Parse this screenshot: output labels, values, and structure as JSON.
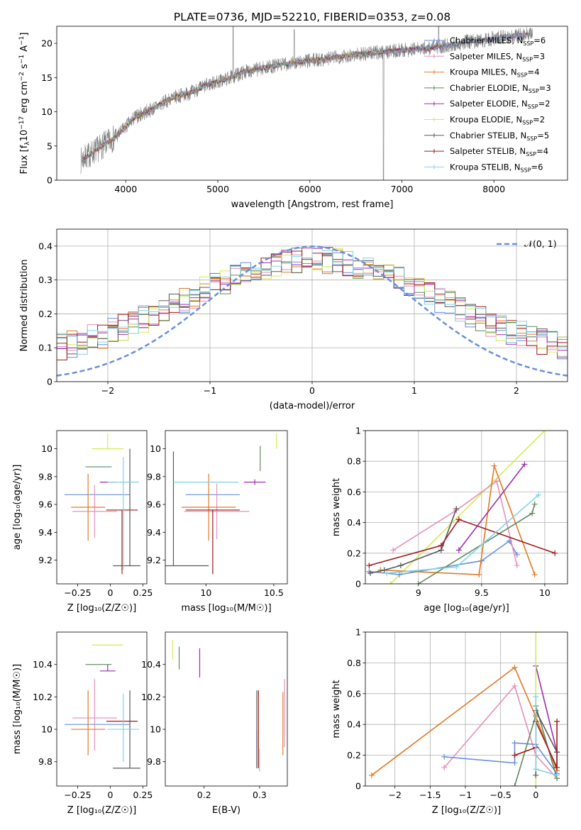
{
  "chart_data": [
    {
      "type": "line",
      "title": "PLATE=0736, MJD=52210, FIBERID=0353, z=0.08",
      "xlabel": "wavelength [Angstrom, rest frame]",
      "ylabel": "Flux [f_λ 10^-17 erg cm^-2 s^-1 A^-1]",
      "xlim": [
        3250,
        8800
      ],
      "ylim": [
        0,
        22.5
      ],
      "xticks": [
        4000,
        5000,
        6000,
        7000,
        8000
      ],
      "yticks": [
        0,
        5,
        10,
        15,
        20
      ],
      "grid": false,
      "legend_position": "top-right",
      "legend": [
        {
          "name": "Chabrier MILES",
          "nssp": "6",
          "color": "#6a8fdc"
        },
        {
          "name": "Salpeter MILES",
          "nssp": "3",
          "color": "#e58fba"
        },
        {
          "name": "Kroupa MILES",
          "nssp": "4",
          "color": "#e07b24"
        },
        {
          "name": "Chabrier ELODIE",
          "nssp": "3",
          "color": "#5f8a5c"
        },
        {
          "name": "Salpeter ELODIE",
          "nssp": "2",
          "color": "#9b2fad"
        },
        {
          "name": "Kroupa ELODIE",
          "nssp": "2",
          "color": "#d4ea53"
        },
        {
          "name": "Chabrier STELIB",
          "nssp": "5",
          "color": "#5a5a5a"
        },
        {
          "name": "Salpeter STELIB",
          "nssp": "4",
          "color": "#a01a1a"
        },
        {
          "name": "Kroupa STELIB",
          "nssp": "6",
          "color": "#7fd3e6"
        }
      ],
      "data_color": "#808080",
      "continuum": {
        "x": [
          3500,
          3700,
          3900,
          4100,
          4300,
          4500,
          4700,
          4900,
          5100,
          5300,
          5500,
          5700,
          5900,
          6100,
          6300,
          6500,
          6700,
          6900,
          7100,
          7300,
          7500,
          7700,
          7900,
          8100,
          8300,
          8400
        ],
        "y": [
          2.8,
          4.6,
          6.4,
          9.2,
          10.5,
          12.0,
          12.8,
          14.0,
          14.8,
          15.9,
          16.4,
          16.9,
          17.3,
          17.6,
          18.0,
          18.4,
          18.6,
          18.9,
          19.1,
          19.3,
          19.7,
          20.2,
          20.5,
          20.9,
          21.2,
          21.3
        ]
      }
    },
    {
      "type": "step",
      "xlabel": "(data-model)/error",
      "ylabel": "Normed distribution",
      "xlim": [
        -2.5,
        2.5
      ],
      "ylim": [
        0,
        0.45
      ],
      "xticks": [
        -2,
        -1,
        0,
        1,
        2
      ],
      "yticks": [
        0.0,
        0.1,
        0.2,
        0.3,
        0.4
      ],
      "grid": true,
      "legend_position": "top-right",
      "reference": {
        "label": "𝒩(0, 1)",
        "color": "#6a8fdc"
      },
      "bin_width": 0.1,
      "series_colors": [
        "#6a8fdc",
        "#e58fba",
        "#e07b24",
        "#5f8a5c",
        "#9b2fad",
        "#d4ea53",
        "#5a5a5a",
        "#a01a1a",
        "#7fd3e6"
      ]
    },
    {
      "type": "errorbar",
      "xlabel": "Z [log₁₀(Z/Z☉)]",
      "ylabel": "age  [log₁₀(age/yr)]",
      "xlim": [
        -0.41,
        0.28
      ],
      "ylim": [
        9.03,
        10.13
      ],
      "xticks": [
        -0.25,
        0.0,
        0.25
      ],
      "yticks": [
        9.2,
        9.4,
        9.6,
        9.8,
        10.0
      ],
      "points": [
        {
          "color": "#6a8fdc",
          "x": -0.1,
          "xerr": [
            0.25,
            0.25
          ],
          "y": 9.67,
          "yerr": [
            0,
            0
          ]
        },
        {
          "color": "#e58fba",
          "x": -0.12,
          "xerr": [
            0.17,
            0.17
          ],
          "y": 9.55,
          "yerr": [
            0.19,
            0.19
          ]
        },
        {
          "color": "#e07b24",
          "x": -0.17,
          "xerr": [
            0.13,
            0.13
          ],
          "y": 9.58,
          "yerr": [
            0.24,
            0.24
          ]
        },
        {
          "color": "#5f8a5c",
          "x": -0.09,
          "xerr": [
            0.1,
            0.1
          ],
          "y": 9.87,
          "yerr": [
            0,
            0
          ]
        },
        {
          "color": "#9b2fad",
          "x": -0.02,
          "xerr": [
            0.06,
            0.06
          ],
          "y": 9.76,
          "yerr": [
            0,
            0
          ]
        },
        {
          "color": "#d4ea53",
          "x": -0.02,
          "xerr": [
            0.12,
            0.12
          ],
          "y": 10.0,
          "yerr": [
            0,
            0.11
          ]
        },
        {
          "color": "#5a5a5a",
          "x": 0.15,
          "xerr": [
            0.13,
            0.08
          ],
          "y": 9.16,
          "yerr": [
            0,
            0.84
          ]
        },
        {
          "color": "#a01a1a",
          "x": 0.09,
          "xerr": [
            0.12,
            0.12
          ],
          "y": 9.56,
          "yerr": [
            0.46,
            0
          ]
        },
        {
          "color": "#7fd3e6",
          "x": 0.1,
          "xerr": [
            0.12,
            0.12
          ],
          "y": 9.76,
          "yerr": [
            0.63,
            0.18
          ]
        }
      ]
    },
    {
      "type": "errorbar",
      "xlabel": "mass [log₁₀(M/M☉)]",
      "xlim": [
        9.7,
        10.6
      ],
      "ylim": [
        9.03,
        10.13
      ],
      "xticks": [
        10.0,
        10.5
      ],
      "yticks": [
        9.2,
        9.4,
        9.6,
        9.8,
        10.0
      ],
      "points": [
        {
          "color": "#6a8fdc",
          "x": 10.05,
          "xerr": [
            0.2,
            0.2
          ],
          "y": 9.67,
          "yerr": [
            0,
            0
          ]
        },
        {
          "color": "#e58fba",
          "x": 10.08,
          "xerr": [
            0.24,
            0.24
          ],
          "y": 9.55,
          "yerr": [
            0.2,
            0.2
          ]
        },
        {
          "color": "#e07b24",
          "x": 10.02,
          "xerr": [
            0.2,
            0.2
          ],
          "y": 9.58,
          "yerr": [
            0.24,
            0.24
          ]
        },
        {
          "color": "#5f8a5c",
          "x": 10.4,
          "xerr": [
            0,
            0
          ],
          "y": 9.87,
          "yerr": [
            0.03,
            0.15
          ]
        },
        {
          "color": "#9b2fad",
          "x": 10.36,
          "xerr": [
            0.08,
            0.08
          ],
          "y": 9.76,
          "yerr": [
            0.02,
            0.02
          ]
        },
        {
          "color": "#d4ea53",
          "x": 10.52,
          "xerr": [
            0,
            0
          ],
          "y": 10.0,
          "yerr": [
            0,
            0.11
          ]
        },
        {
          "color": "#5a5a5a",
          "x": 9.76,
          "xerr": [
            0.12,
            0.26
          ],
          "y": 9.16,
          "yerr": [
            0,
            0.82
          ]
        },
        {
          "color": "#a01a1a",
          "x": 10.05,
          "xerr": [
            0.2,
            0.2
          ],
          "y": 9.56,
          "yerr": [
            0.46,
            0
          ]
        },
        {
          "color": "#7fd3e6",
          "x": 10.0,
          "xerr": [
            0.24,
            0.24
          ],
          "y": 9.76,
          "yerr": [
            0,
            0
          ]
        }
      ]
    },
    {
      "type": "line",
      "xlabel": "age  [log₁₀(age/yr)]",
      "ylabel": "mass weight",
      "xlim": [
        8.58,
        10.18
      ],
      "ylim": [
        0,
        1.0
      ],
      "xticks": [
        9.0,
        9.5,
        10.0
      ],
      "yticks": [
        0.0,
        0.2,
        0.4,
        0.6,
        0.8,
        1.0
      ],
      "grid": true,
      "series": [
        {
          "color": "#d4ea53",
          "x": [
            8.78,
            10.0
          ],
          "y": [
            0.0,
            1.0
          ]
        },
        {
          "color": "#6a8fdc",
          "x": [
            8.61,
            8.85,
            9.5,
            9.72,
            9.78
          ],
          "y": [
            0.08,
            0.06,
            0.15,
            0.28,
            0.19
          ]
        },
        {
          "color": "#e58fba",
          "x": [
            8.8,
            9.3,
            9.62,
            9.78
          ],
          "y": [
            0.22,
            0.48,
            0.67,
            0.12
          ]
        },
        {
          "color": "#e07b24",
          "x": [
            8.7,
            9.48,
            9.6,
            9.92
          ],
          "y": [
            0.09,
            0.06,
            0.77,
            0.06
          ]
        },
        {
          "color": "#5f8a5c",
          "x": [
            9.0,
            9.9,
            9.92
          ],
          "y": [
            0.0,
            0.46,
            0.52
          ]
        },
        {
          "color": "#9b2fad",
          "x": [
            9.32,
            9.84
          ],
          "y": [
            0.22,
            0.78
          ]
        },
        {
          "color": "#5a5a5a",
          "x": [
            8.62,
            8.73,
            8.86,
            9.18,
            9.3
          ],
          "y": [
            0.07,
            0.09,
            0.12,
            0.22,
            0.49
          ]
        },
        {
          "color": "#a01a1a",
          "x": [
            8.61,
            9.18,
            9.32,
            10.08
          ],
          "y": [
            0.12,
            0.25,
            0.42,
            0.2
          ]
        },
        {
          "color": "#7fd3e6",
          "x": [
            8.75,
            9.3,
            9.95
          ],
          "y": [
            0.07,
            0.11,
            0.58
          ]
        }
      ]
    },
    {
      "type": "errorbar",
      "xlabel": "Z [log₁₀(Z/Z☉)]",
      "ylabel": "mass [log₁₀(M/M☉)]",
      "xlim": [
        -0.41,
        0.28
      ],
      "ylim": [
        9.65,
        10.6
      ],
      "xticks": [
        -0.25,
        0.0,
        0.25
      ],
      "yticks": [
        9.8,
        10.0,
        10.2,
        10.4
      ],
      "points": [
        {
          "color": "#6a8fdc",
          "x": -0.1,
          "xerr": [
            0.25,
            0.25
          ],
          "y": 10.03,
          "yerr": [
            0,
            0
          ]
        },
        {
          "color": "#e58fba",
          "x": -0.12,
          "xerr": [
            0.17,
            0.17
          ],
          "y": 10.07,
          "yerr": [
            0.2,
            0.24
          ]
        },
        {
          "color": "#e07b24",
          "x": -0.17,
          "xerr": [
            0.13,
            0.13
          ],
          "y": 10.0,
          "yerr": [
            0.16,
            0.24
          ]
        },
        {
          "color": "#5f8a5c",
          "x": -0.09,
          "xerr": [
            0.1,
            0.1
          ],
          "y": 10.4,
          "yerr": [
            0,
            0
          ]
        },
        {
          "color": "#9b2fad",
          "x": -0.02,
          "xerr": [
            0.06,
            0.06
          ],
          "y": 10.36,
          "yerr": [
            0,
            0.04
          ]
        },
        {
          "color": "#d4ea53",
          "x": -0.02,
          "xerr": [
            0.12,
            0.12
          ],
          "y": 10.52,
          "yerr": [
            0,
            0
          ]
        },
        {
          "color": "#5a5a5a",
          "x": 0.15,
          "xerr": [
            0.13,
            0.08
          ],
          "y": 9.76,
          "yerr": [
            0,
            0.48
          ]
        },
        {
          "color": "#a01a1a",
          "x": 0.09,
          "xerr": [
            0.12,
            0.12
          ],
          "y": 10.05,
          "yerr": [
            0,
            0
          ]
        },
        {
          "color": "#7fd3e6",
          "x": 0.1,
          "xerr": [
            0.12,
            0.12
          ],
          "y": 10.0,
          "yerr": [
            0.2,
            0.22
          ]
        }
      ]
    },
    {
      "type": "errorbar",
      "xlabel": "E(B-V)",
      "xlim": [
        0.13,
        0.35
      ],
      "ylim": [
        9.65,
        10.6
      ],
      "xticks": [
        0.2,
        0.3
      ],
      "yticks": [
        9.8,
        10.0,
        10.2,
        10.4
      ],
      "points": [
        {
          "color": "#6a8fdc",
          "x": 0.295,
          "xerr": [
            0,
            0
          ],
          "y": 9.76,
          "yerr": [
            0,
            0.24
          ]
        },
        {
          "color": "#e58fba",
          "x": 0.345,
          "xerr": [
            0,
            0
          ],
          "y": 10.07,
          "yerr": [
            0.18,
            0.24
          ]
        },
        {
          "color": "#e07b24",
          "x": 0.342,
          "xerr": [
            0,
            0
          ],
          "y": 10.0,
          "yerr": [
            0.16,
            0.23
          ]
        },
        {
          "color": "#5f8a5c",
          "x": 0.155,
          "xerr": [
            0,
            0
          ],
          "y": 10.44,
          "yerr": [
            0.07,
            0.07
          ]
        },
        {
          "color": "#9b2fad",
          "x": 0.192,
          "xerr": [
            0,
            0
          ],
          "y": 10.41,
          "yerr": [
            0.09,
            0.09
          ]
        },
        {
          "color": "#d4ea53",
          "x": 0.143,
          "xerr": [
            0,
            0
          ],
          "y": 10.48,
          "yerr": [
            0.05,
            0.07
          ]
        },
        {
          "color": "#5a5a5a",
          "x": 0.295,
          "xerr": [
            0,
            0
          ],
          "y": 10.0,
          "yerr": [
            0.24,
            0.24
          ]
        },
        {
          "color": "#a01a1a",
          "x": 0.298,
          "xerr": [
            0,
            0
          ],
          "y": 10.0,
          "yerr": [
            0.24,
            0.24
          ]
        },
        {
          "color": "#7fd3e6",
          "x": 0.3,
          "xerr": [
            0,
            0
          ],
          "y": 9.82,
          "yerr": [
            0.08,
            0.06
          ]
        }
      ]
    },
    {
      "type": "line",
      "xlabel": "Z [log₁₀(Z/Z☉)]",
      "ylabel": "mass weight",
      "xlim": [
        -2.42,
        0.45
      ],
      "ylim": [
        0,
        1.0
      ],
      "xticks": [
        -2.0,
        -1.5,
        -1.0,
        -0.5,
        0.0
      ],
      "yticks": [
        0.0,
        0.2,
        0.4,
        0.6,
        0.8,
        1.0
      ],
      "grid": true,
      "series": [
        {
          "color": "#e07b24",
          "x": [
            -2.33,
            -0.3,
            0.0,
            0.3
          ],
          "y": [
            0.07,
            0.77,
            0.45,
            0.1
          ]
        },
        {
          "color": "#e58fba",
          "x": [
            -1.3,
            -0.3,
            0.0,
            0.3
          ],
          "y": [
            0.12,
            0.65,
            0.2,
            0.05
          ]
        },
        {
          "color": "#6a8fdc",
          "x": [
            -1.3,
            -0.3,
            -0.3,
            0.0,
            0.3
          ],
          "y": [
            0.19,
            0.15,
            0.28,
            0.27,
            0.08
          ]
        },
        {
          "color": "#5f8a5c",
          "x": [
            -0.3,
            0.0,
            0.0,
            0.3
          ],
          "y": [
            0.0,
            0.46,
            0.52,
            0.05
          ]
        },
        {
          "color": "#9b2fad",
          "x": [
            0.0,
            0.3
          ],
          "y": [
            0.78,
            0.22
          ]
        },
        {
          "color": "#d4ea53",
          "x": [
            0.0,
            0.0
          ],
          "y": [
            0.0,
            1.0
          ]
        },
        {
          "color": "#5a5a5a",
          "x": [
            0.0,
            0.0,
            0.3,
            0.3
          ],
          "y": [
            0.07,
            0.49,
            0.22,
            0.12
          ]
        },
        {
          "color": "#a01a1a",
          "x": [
            -0.3,
            0.0,
            0.0,
            0.3,
            0.3
          ],
          "y": [
            0.2,
            0.25,
            0.42,
            0.12,
            0.42
          ]
        },
        {
          "color": "#7fd3e6",
          "x": [
            0.0,
            0.0,
            0.3
          ],
          "y": [
            0.58,
            0.11,
            0.07
          ]
        }
      ]
    }
  ]
}
